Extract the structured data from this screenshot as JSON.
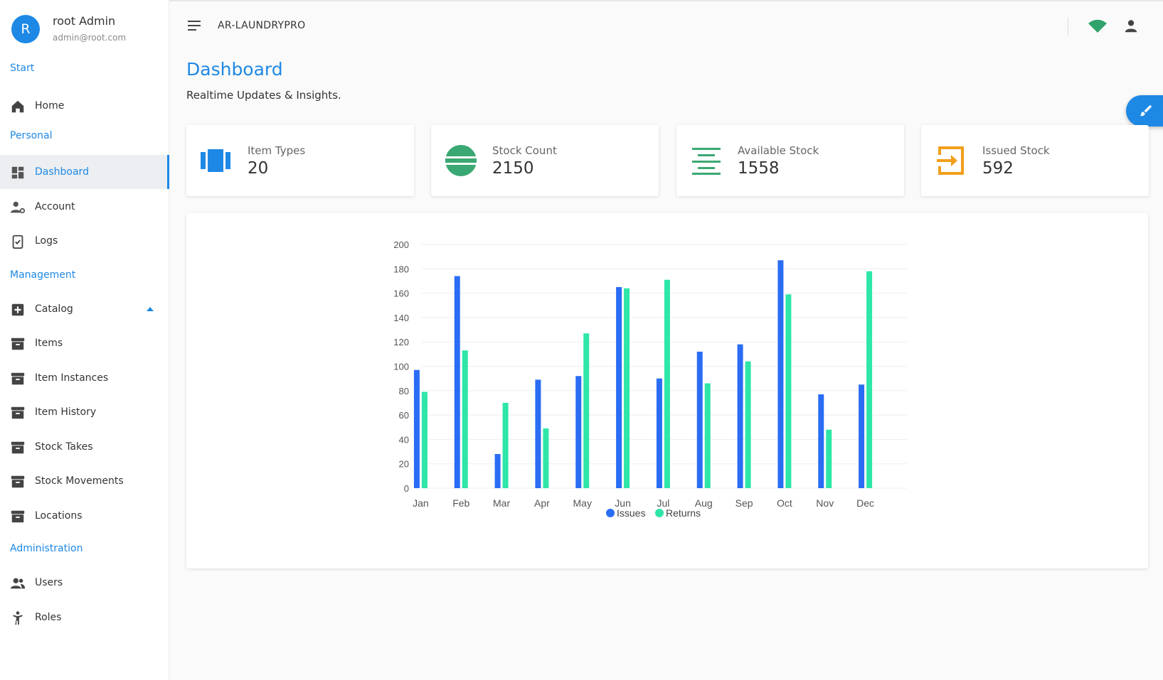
{
  "user": {
    "avatar_letter": "R",
    "name": "root Admin",
    "email": "admin@root.com"
  },
  "sidebar": {
    "sections": {
      "start": "Start",
      "personal": "Personal",
      "management": "Management",
      "administration": "Administration"
    },
    "items": {
      "home": {
        "label": "Home",
        "icon": "home-icon"
      },
      "dashboard": {
        "label": "Dashboard",
        "icon": "dashboard-icon",
        "active": true
      },
      "account": {
        "label": "Account",
        "icon": "account-settings-icon"
      },
      "logs": {
        "label": "Logs",
        "icon": "clipboard-check-icon"
      },
      "catalog": {
        "label": "Catalog",
        "icon": "plus-box-icon",
        "expanded": true
      },
      "items": {
        "label": "Items",
        "icon": "archive-icon"
      },
      "item_instances": {
        "label": "Item Instances",
        "icon": "archive-icon"
      },
      "item_history": {
        "label": "Item History",
        "icon": "archive-icon"
      },
      "stock_takes": {
        "label": "Stock Takes",
        "icon": "archive-icon"
      },
      "stock_movements": {
        "label": "Stock Movements",
        "icon": "archive-icon"
      },
      "locations": {
        "label": "Locations",
        "icon": "archive-icon"
      },
      "users": {
        "label": "Users",
        "icon": "users-icon"
      },
      "roles": {
        "label": "Roles",
        "icon": "person-pose-icon"
      }
    }
  },
  "topbar": {
    "app_name": "AR-LAUNDRYPRO"
  },
  "page": {
    "title": "Dashboard",
    "subtitle": "Realtime Updates & Insights."
  },
  "stats": {
    "item_types": {
      "label": "Item Types",
      "value": "20",
      "icon": "columns-icon",
      "color": "#1e88e5"
    },
    "stock_count": {
      "label": "Stock Count",
      "value": "2150",
      "icon": "disc-icon",
      "color": "#3aa873"
    },
    "available_stock": {
      "label": "Available Stock",
      "value": "1558",
      "icon": "align-center-icon",
      "color": "#3aa873"
    },
    "issued_stock": {
      "label": "Issued Stock",
      "value": "592",
      "icon": "exit-icon",
      "color": "#f29f1b"
    }
  },
  "colors": {
    "accent": "#1e88e5",
    "issues": "#2a6df4",
    "returns": "#2ee6a8"
  },
  "chart_data": {
    "type": "bar",
    "categories": [
      "Jan",
      "Feb",
      "Mar",
      "Apr",
      "May",
      "Jun",
      "Jul",
      "Aug",
      "Sep",
      "Oct",
      "Nov",
      "Dec"
    ],
    "series": [
      {
        "name": "Issues",
        "values": [
          97,
          174,
          28,
          89,
          92,
          165,
          90,
          112,
          118,
          187,
          77,
          85
        ]
      },
      {
        "name": "Returns",
        "values": [
          79,
          113,
          70,
          49,
          127,
          164,
          171,
          86,
          104,
          159,
          48,
          178
        ]
      }
    ],
    "yticks": [
      0,
      20,
      40,
      60,
      80,
      100,
      120,
      140,
      160,
      180,
      200
    ],
    "ylim": [
      0,
      200
    ],
    "legend": "bottom-center",
    "grid": true
  }
}
